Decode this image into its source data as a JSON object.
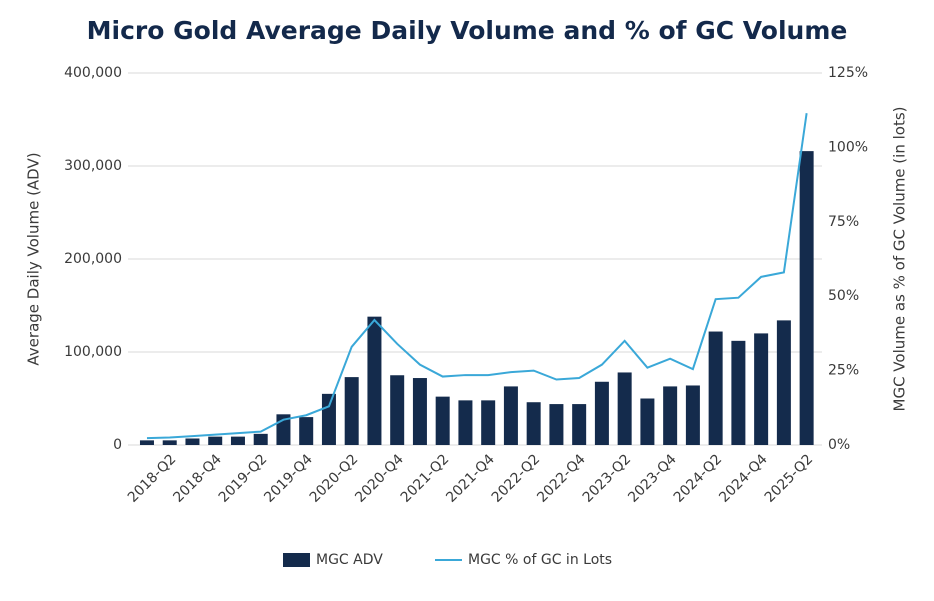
{
  "chart_data": {
    "type": "bar+line",
    "title": "Micro Gold Average Daily Volume and % of GC Volume",
    "y_label": "Average Daily Volume (ADV)",
    "y2_label": "MGC Volume as % of GC Volume (in lots)",
    "categories": [
      null,
      "2018-Q2",
      null,
      "2018-Q4",
      null,
      "2019-Q2",
      null,
      "2019-Q4",
      null,
      "2020-Q2",
      null,
      "2020-Q4",
      null,
      "2021-Q2",
      null,
      "2021-Q4",
      null,
      "2022-Q2",
      null,
      "2022-Q4",
      null,
      "2023-Q2",
      null,
      "2023-Q4",
      null,
      "2024-Q2",
      null,
      "2024-Q4",
      null,
      "2025-Q2"
    ],
    "series": [
      {
        "name": "MGC ADV",
        "type": "bar",
        "color": "#142b4c",
        "values": [
          5000,
          5000,
          7000,
          9000,
          9000,
          12000,
          33000,
          30000,
          55000,
          73000,
          138000,
          75000,
          72000,
          52000,
          48000,
          48000,
          63000,
          46000,
          44000,
          44000,
          68000,
          78000,
          50000,
          63000,
          64000,
          122000,
          112000,
          120000,
          134000,
          316000
        ]
      },
      {
        "name": "MGC % of GC in Lots",
        "type": "line",
        "axis": "y2",
        "color": "#3aa8d8",
        "values": [
          2.3,
          2.5,
          3,
          3.5,
          4,
          4.5,
          8.5,
          10,
          13,
          33,
          42,
          34,
          27,
          23,
          23.5,
          23.5,
          24.5,
          25,
          22,
          22.5,
          27,
          35,
          26,
          29,
          25.5,
          49,
          49.5,
          56.5,
          58,
          111.5
        ]
      }
    ],
    "ylim": [
      0,
      400000
    ],
    "yticks": [
      0,
      {
        "value": 100000,
        "label": "100,000"
      },
      {
        "value": 200000,
        "label": "200,000"
      },
      {
        "value": 300000,
        "label": "300,000"
      },
      {
        "value": 400000,
        "label": "400,000"
      }
    ],
    "y2lim": [
      0,
      125
    ],
    "y2ticks": [
      {
        "value": 0,
        "label": "0%"
      },
      {
        "value": 25,
        "label": "25%"
      },
      {
        "value": 50,
        "label": "50%"
      },
      {
        "value": 75,
        "label": "75%"
      },
      {
        "value": 100,
        "label": "100%"
      },
      {
        "value": 125,
        "label": "125%"
      }
    ],
    "grid": true,
    "legend": "bottom"
  }
}
